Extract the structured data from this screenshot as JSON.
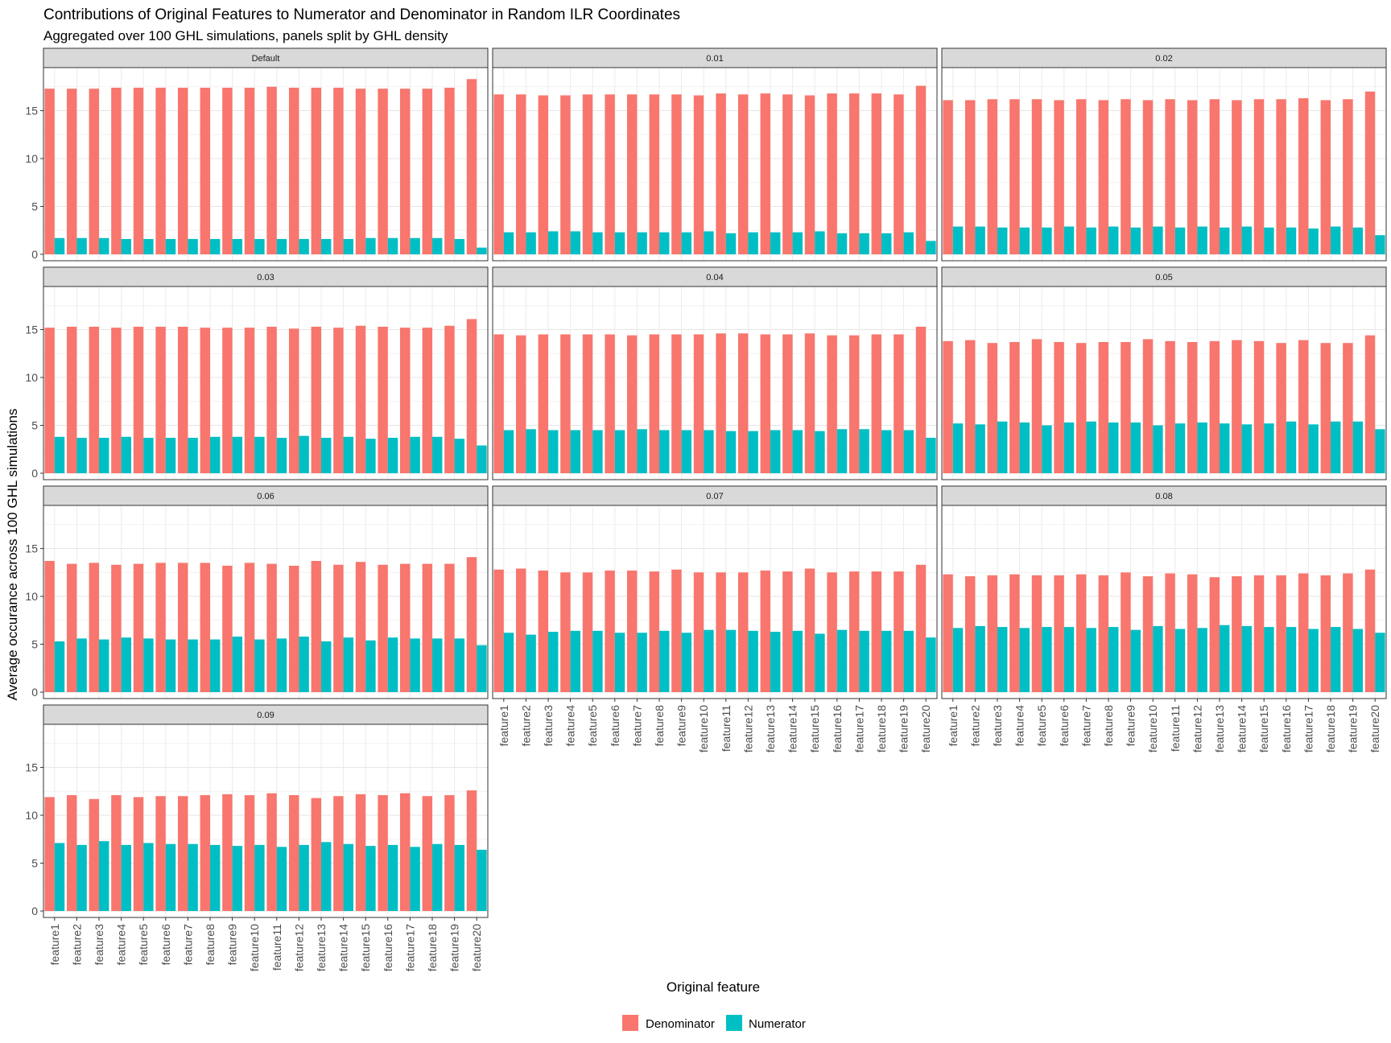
{
  "chart_data": {
    "type": "bar",
    "title": "Contributions of Original Features to Numerator and Denominator in Random ILR Coordinates",
    "subtitle": "Aggregated over 100 GHL simulations, panels split by GHL density",
    "xlabel": "Original feature",
    "ylabel": "Average occurance across 100 GHL simulations",
    "ylim": [
      0,
      19.5
    ],
    "yticks": [
      0,
      5,
      10,
      15
    ],
    "legend_position": "bottom",
    "grid": true,
    "categories": [
      "feature1",
      "feature2",
      "feature3",
      "feature4",
      "feature5",
      "feature6",
      "feature7",
      "feature8",
      "feature9",
      "feature10",
      "feature11",
      "feature12",
      "feature13",
      "feature14",
      "feature15",
      "feature16",
      "feature17",
      "feature18",
      "feature19",
      "feature20"
    ],
    "series_names": [
      "Denominator",
      "Numerator"
    ],
    "colors": {
      "Denominator": "#F8766D",
      "Numerator": "#00BFC4"
    },
    "panels": [
      {
        "label": "Default",
        "denominator": [
          17.3,
          17.3,
          17.3,
          17.4,
          17.4,
          17.4,
          17.4,
          17.4,
          17.4,
          17.4,
          17.5,
          17.4,
          17.4,
          17.4,
          17.3,
          17.3,
          17.3,
          17.3,
          17.4,
          18.3
        ],
        "numerator": [
          1.7,
          1.7,
          1.7,
          1.6,
          1.6,
          1.6,
          1.6,
          1.6,
          1.6,
          1.6,
          1.6,
          1.6,
          1.6,
          1.6,
          1.7,
          1.7,
          1.7,
          1.7,
          1.6,
          0.7
        ]
      },
      {
        "label": "0.01",
        "denominator": [
          16.7,
          16.7,
          16.6,
          16.6,
          16.7,
          16.7,
          16.7,
          16.7,
          16.7,
          16.6,
          16.8,
          16.7,
          16.8,
          16.7,
          16.6,
          16.8,
          16.8,
          16.8,
          16.7,
          17.6
        ],
        "numerator": [
          2.3,
          2.3,
          2.4,
          2.4,
          2.3,
          2.3,
          2.3,
          2.3,
          2.3,
          2.4,
          2.2,
          2.3,
          2.3,
          2.3,
          2.4,
          2.2,
          2.2,
          2.2,
          2.3,
          1.4
        ]
      },
      {
        "label": "0.02",
        "denominator": [
          16.1,
          16.1,
          16.2,
          16.2,
          16.2,
          16.1,
          16.2,
          16.1,
          16.2,
          16.1,
          16.2,
          16.1,
          16.2,
          16.1,
          16.2,
          16.2,
          16.3,
          16.1,
          16.2,
          17.0
        ],
        "numerator": [
          2.9,
          2.9,
          2.8,
          2.8,
          2.8,
          2.9,
          2.8,
          2.9,
          2.8,
          2.9,
          2.8,
          2.9,
          2.8,
          2.9,
          2.8,
          2.8,
          2.7,
          2.9,
          2.8,
          2.0
        ]
      },
      {
        "label": "0.03",
        "denominator": [
          15.2,
          15.3,
          15.3,
          15.2,
          15.3,
          15.3,
          15.3,
          15.2,
          15.2,
          15.2,
          15.3,
          15.1,
          15.3,
          15.2,
          15.4,
          15.3,
          15.2,
          15.2,
          15.4,
          16.1
        ],
        "numerator": [
          3.8,
          3.7,
          3.7,
          3.8,
          3.7,
          3.7,
          3.7,
          3.8,
          3.8,
          3.8,
          3.7,
          3.9,
          3.7,
          3.8,
          3.6,
          3.7,
          3.8,
          3.8,
          3.6,
          2.9
        ]
      },
      {
        "label": "0.04",
        "denominator": [
          14.5,
          14.4,
          14.5,
          14.5,
          14.5,
          14.5,
          14.4,
          14.5,
          14.5,
          14.5,
          14.6,
          14.6,
          14.5,
          14.5,
          14.6,
          14.4,
          14.4,
          14.5,
          14.5,
          15.3
        ],
        "numerator": [
          4.5,
          4.6,
          4.5,
          4.5,
          4.5,
          4.5,
          4.6,
          4.5,
          4.5,
          4.5,
          4.4,
          4.4,
          4.5,
          4.5,
          4.4,
          4.6,
          4.6,
          4.5,
          4.5,
          3.7
        ]
      },
      {
        "label": "0.05",
        "denominator": [
          13.8,
          13.9,
          13.6,
          13.7,
          14.0,
          13.7,
          13.6,
          13.7,
          13.7,
          14.0,
          13.8,
          13.7,
          13.8,
          13.9,
          13.8,
          13.6,
          13.9,
          13.6,
          13.6,
          14.4
        ],
        "numerator": [
          5.2,
          5.1,
          5.4,
          5.3,
          5.0,
          5.3,
          5.4,
          5.3,
          5.3,
          5.0,
          5.2,
          5.3,
          5.2,
          5.1,
          5.2,
          5.4,
          5.1,
          5.4,
          5.4,
          4.6
        ]
      },
      {
        "label": "0.06",
        "denominator": [
          13.7,
          13.4,
          13.5,
          13.3,
          13.4,
          13.5,
          13.5,
          13.5,
          13.2,
          13.5,
          13.4,
          13.2,
          13.7,
          13.3,
          13.6,
          13.3,
          13.4,
          13.4,
          13.4,
          14.1
        ],
        "numerator": [
          5.3,
          5.6,
          5.5,
          5.7,
          5.6,
          5.5,
          5.5,
          5.5,
          5.8,
          5.5,
          5.6,
          5.8,
          5.3,
          5.7,
          5.4,
          5.7,
          5.6,
          5.6,
          5.6,
          4.9
        ]
      },
      {
        "label": "0.07",
        "denominator": [
          12.8,
          12.9,
          12.7,
          12.5,
          12.5,
          12.7,
          12.7,
          12.6,
          12.8,
          12.5,
          12.5,
          12.5,
          12.7,
          12.6,
          12.9,
          12.5,
          12.6,
          12.6,
          12.6,
          13.3
        ],
        "numerator": [
          6.2,
          6.0,
          6.3,
          6.4,
          6.4,
          6.2,
          6.2,
          6.4,
          6.2,
          6.5,
          6.5,
          6.4,
          6.3,
          6.4,
          6.1,
          6.5,
          6.4,
          6.4,
          6.4,
          5.7
        ]
      },
      {
        "label": "0.08",
        "denominator": [
          12.3,
          12.1,
          12.2,
          12.3,
          12.2,
          12.2,
          12.3,
          12.2,
          12.5,
          12.1,
          12.4,
          12.3,
          12.0,
          12.1,
          12.2,
          12.2,
          12.4,
          12.2,
          12.4,
          12.8
        ],
        "numerator": [
          6.7,
          6.9,
          6.8,
          6.7,
          6.8,
          6.8,
          6.7,
          6.8,
          6.5,
          6.9,
          6.6,
          6.7,
          7.0,
          6.9,
          6.8,
          6.8,
          6.6,
          6.8,
          6.6,
          6.2
        ]
      },
      {
        "label": "0.09",
        "denominator": [
          11.9,
          12.1,
          11.7,
          12.1,
          11.9,
          12.0,
          12.0,
          12.1,
          12.2,
          12.1,
          12.3,
          12.1,
          11.8,
          12.0,
          12.2,
          12.1,
          12.3,
          12.0,
          12.1,
          12.6
        ],
        "numerator": [
          7.1,
          6.9,
          7.3,
          6.9,
          7.1,
          7.0,
          7.0,
          6.9,
          6.8,
          6.9,
          6.7,
          6.9,
          7.2,
          7.0,
          6.8,
          6.9,
          6.7,
          7.0,
          6.9,
          6.4
        ]
      }
    ]
  }
}
